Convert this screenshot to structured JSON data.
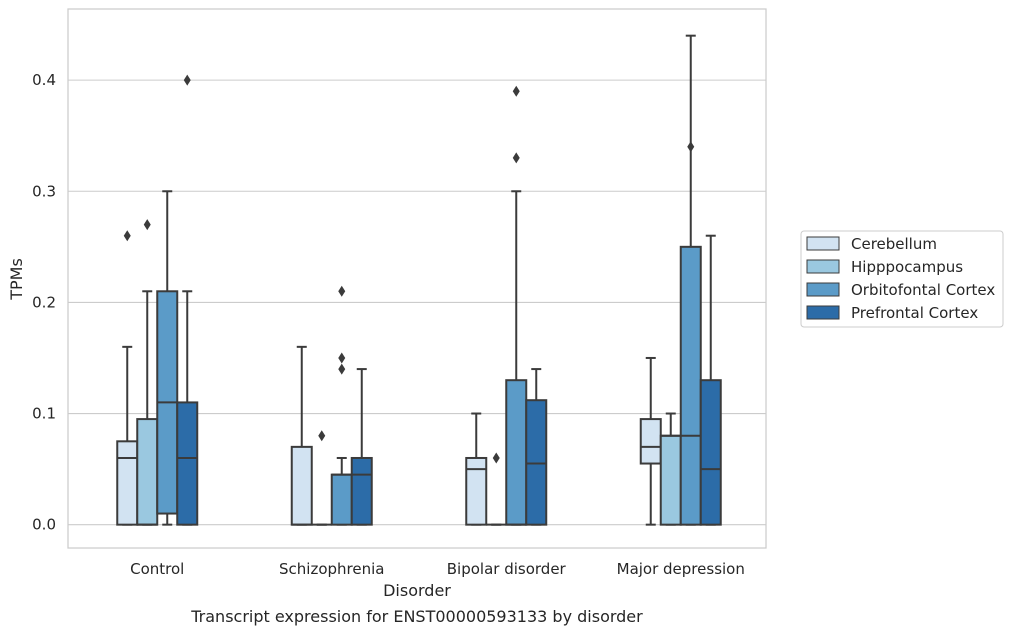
{
  "chart_data": {
    "type": "box",
    "xlabel": "Disorder",
    "ylabel": "TPMs",
    "caption": "Transcript expression for ENST00000593133 by disorder",
    "ylim": [
      -0.021,
      0.464
    ],
    "yticks": [
      "0.0",
      "0.1",
      "0.2",
      "0.3",
      "0.4"
    ],
    "grid": true,
    "legend_position": "right",
    "categories": [
      "Control",
      "Schizophrenia",
      "Bipolar disorder",
      "Major depression"
    ],
    "series": [
      {
        "name": "Cerebellum",
        "color": "#d2e3f2",
        "boxes": [
          {
            "whisker_low": 0.0,
            "q1": 0.0,
            "median": 0.06,
            "q3": 0.075,
            "whisker_high": 0.16,
            "outliers": [
              0.26
            ]
          },
          {
            "whisker_low": 0.0,
            "q1": 0.0,
            "median": 0.0,
            "q3": 0.07,
            "whisker_high": 0.16,
            "outliers": []
          },
          {
            "whisker_low": 0.0,
            "q1": 0.0,
            "median": 0.05,
            "q3": 0.06,
            "whisker_high": 0.1,
            "outliers": []
          },
          {
            "whisker_low": 0.0,
            "q1": 0.055,
            "median": 0.07,
            "q3": 0.095,
            "whisker_high": 0.15,
            "outliers": []
          }
        ]
      },
      {
        "name": "Hipppocampus",
        "color": "#9ac8e0",
        "boxes": [
          {
            "whisker_low": 0.0,
            "q1": 0.0,
            "median": 0.0,
            "q3": 0.095,
            "whisker_high": 0.21,
            "outliers": [
              0.27
            ]
          },
          {
            "whisker_low": 0.0,
            "q1": 0.0,
            "median": 0.0,
            "q3": 0.0,
            "whisker_high": 0.0,
            "outliers": [
              0.08
            ]
          },
          {
            "whisker_low": 0.0,
            "q1": 0.0,
            "median": 0.0,
            "q3": 0.0,
            "whisker_high": 0.0,
            "outliers": [
              0.06
            ]
          },
          {
            "whisker_low": 0.0,
            "q1": 0.0,
            "median": 0.08,
            "q3": 0.08,
            "whisker_high": 0.1,
            "outliers": []
          }
        ]
      },
      {
        "name": "Orbitofontal Cortex",
        "color": "#5b9bc8",
        "boxes": [
          {
            "whisker_low": 0.0,
            "q1": 0.01,
            "median": 0.11,
            "q3": 0.21,
            "whisker_high": 0.3,
            "outliers": []
          },
          {
            "whisker_low": 0.0,
            "q1": 0.0,
            "median": 0.045,
            "q3": 0.045,
            "whisker_high": 0.06,
            "outliers": [
              0.14,
              0.15,
              0.21
            ]
          },
          {
            "whisker_low": 0.0,
            "q1": 0.0,
            "median": 0.0,
            "q3": 0.13,
            "whisker_high": 0.3,
            "outliers": [
              0.33,
              0.39
            ]
          },
          {
            "whisker_low": 0.0,
            "q1": 0.0,
            "median": 0.08,
            "q3": 0.25,
            "whisker_high": 0.44,
            "outliers": [
              0.34
            ]
          }
        ]
      },
      {
        "name": "Prefrontal Cortex",
        "color": "#2c6ca8",
        "boxes": [
          {
            "whisker_low": 0.0,
            "q1": 0.0,
            "median": 0.06,
            "q3": 0.11,
            "whisker_high": 0.21,
            "outliers": [
              0.4
            ]
          },
          {
            "whisker_low": 0.0,
            "q1": 0.0,
            "median": 0.045,
            "q3": 0.06,
            "whisker_high": 0.14,
            "outliers": []
          },
          {
            "whisker_low": 0.0,
            "q1": 0.0,
            "median": 0.055,
            "q3": 0.112,
            "whisker_high": 0.14,
            "outliers": []
          },
          {
            "whisker_low": 0.0,
            "q1": 0.0,
            "median": 0.05,
            "q3": 0.13,
            "whisker_high": 0.26,
            "outliers": []
          }
        ]
      }
    ]
  }
}
